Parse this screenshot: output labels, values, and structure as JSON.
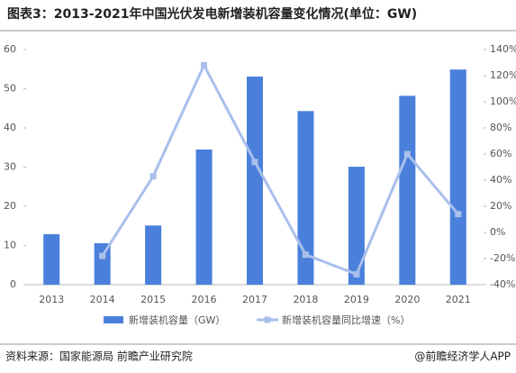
{
  "chart_data": {
    "type": "bar_line",
    "title": "图表3：2013-2021年中国光伏发电新增装机容量变化情况(单位：GW)",
    "source": "资料来源：国家能源局 前瞻产业研究院",
    "credit": "@前瞻经济学人APP",
    "categories": [
      "2013",
      "2014",
      "2015",
      "2016",
      "2017",
      "2018",
      "2019",
      "2020",
      "2021"
    ],
    "series": [
      {
        "name": "新增装机容量（GW）",
        "color": "#4a80dc",
        "type": "bar",
        "values": [
          12.9,
          10.6,
          15.1,
          34.5,
          53.1,
          44.3,
          30.1,
          48.2,
          54.9
        ]
      },
      {
        "name": "新增装机容量同比增速（%）",
        "color": "#a9bfec",
        "type": "line",
        "axis": "y2",
        "values": [
          null,
          -18,
          43,
          128,
          54,
          -17,
          -32,
          60,
          14
        ]
      }
    ],
    "ylim": [
      0,
      60
    ],
    "yticks": [
      0,
      10,
      20,
      30,
      40,
      50,
      60
    ],
    "y2lim": [
      -40,
      140
    ],
    "y2ticks": [
      {
        "value": -40,
        "label": "-40%"
      },
      {
        "value": -20,
        "label": "-20%"
      },
      {
        "value": 0,
        "label": "0%"
      },
      {
        "value": 20,
        "label": "20%"
      },
      {
        "value": 40,
        "label": "40%"
      },
      {
        "value": 60,
        "label": "60%"
      },
      {
        "value": 80,
        "label": "80%"
      },
      {
        "value": 100,
        "label": "100%"
      },
      {
        "value": 120,
        "label": "120%"
      },
      {
        "value": 140,
        "label": "140%"
      }
    ]
  }
}
